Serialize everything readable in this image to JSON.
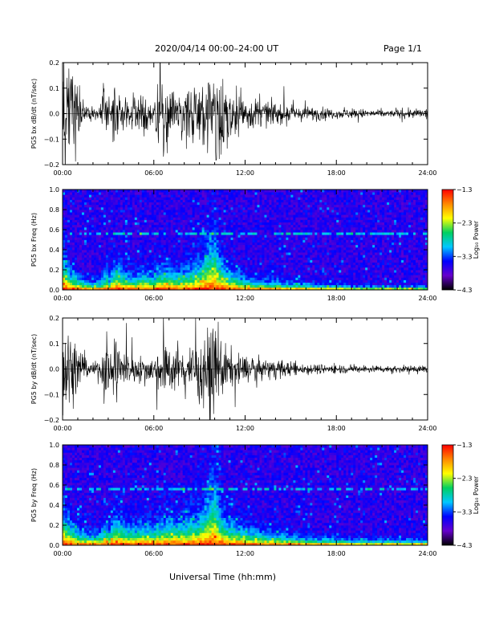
{
  "header": {
    "title": "2020/04/14   00:00–24:00 UT",
    "page": "Page 1/1"
  },
  "footer": {
    "xlabel": "Universal Time (hh:mm)"
  },
  "colors": {
    "trace": "#000000",
    "spec_background": "#1a0033",
    "colorbar": [
      "#000000",
      "#6600cc",
      "#0000ff",
      "#00c8ff",
      "#00d060",
      "#ffff00",
      "#ff8800",
      "#ff0000"
    ]
  },
  "chart_data": [
    {
      "type": "line",
      "name": "timeseries_bx",
      "ylabel": "PG5 bx dB/dt (nT/sec)",
      "xlabel": "",
      "xlim": [
        0,
        24
      ],
      "ylim": [
        -0.2,
        0.2
      ],
      "xticks": [
        "00:00",
        "06:00",
        "12:00",
        "18:00",
        "24:00"
      ],
      "yticks": [
        "0.2",
        "0.1",
        "0.0",
        "−0.1",
        "−0.2"
      ],
      "ytick_values": [
        0.2,
        0.1,
        0.0,
        -0.1,
        -0.2
      ],
      "x": [
        0,
        0.3,
        0.6,
        0.9,
        1.2,
        1.5,
        2.0,
        2.5,
        2.9,
        3.1,
        3.4,
        3.8,
        4.3,
        4.8,
        5.2,
        5.6,
        6.0,
        6.3,
        6.8,
        7.3,
        7.8,
        8.3,
        8.8,
        9.3,
        9.7,
        10.0,
        10.3,
        10.8,
        11.3,
        11.8,
        12.3,
        12.8,
        13.3,
        13.8,
        14.5,
        15.2,
        16.0,
        16.8,
        17.5,
        18.2,
        19.0,
        19.8,
        20.5,
        21.2,
        22.0,
        22.8,
        23.5,
        24.0
      ],
      "y": [
        0.2,
        0.2,
        0.2,
        0.15,
        0.08,
        0.04,
        0.03,
        0.04,
        0.2,
        0.06,
        0.2,
        0.08,
        0.07,
        0.06,
        0.08,
        0.06,
        0.05,
        0.15,
        0.13,
        0.1,
        0.1,
        0.13,
        0.16,
        0.14,
        0.18,
        0.2,
        0.18,
        0.12,
        0.09,
        0.08,
        0.07,
        0.06,
        0.05,
        0.05,
        0.04,
        0.03,
        0.03,
        0.03,
        0.02,
        0.02,
        0.02,
        0.02,
        0.015,
        0.015,
        0.015,
        0.02,
        0.02,
        0.025
      ]
    },
    {
      "type": "heatmap",
      "name": "spectrogram_bx",
      "ylabel": "PG5 bx Freq (Hz)",
      "xlabel": "",
      "xlim": [
        0,
        24
      ],
      "ylim": [
        0.0,
        1.0
      ],
      "xticks": [
        "00:00",
        "06:00",
        "12:00",
        "18:00",
        "24:00"
      ],
      "yticks": [
        "1.0",
        "0.8",
        "0.6",
        "0.4",
        "0.2",
        "0.0"
      ],
      "ytick_values": [
        1.0,
        0.8,
        0.6,
        0.4,
        0.2,
        0.0
      ],
      "colorbar_label": "Log₁₀ Power",
      "colorbar_ticks": [
        "−1.3",
        "−2.3",
        "−3.3",
        "−4.3"
      ],
      "colorbar_values": [
        -1.3,
        -2.3,
        -3.3,
        -4.3
      ],
      "clim": [
        -4.3,
        -1.3
      ],
      "band_center_hz": 0.56,
      "x": [
        0,
        0.3,
        0.6,
        0.9,
        1.2,
        1.5,
        2.0,
        2.5,
        2.9,
        3.1,
        3.4,
        3.8,
        4.3,
        4.8,
        5.2,
        5.6,
        6.0,
        6.3,
        6.8,
        7.3,
        7.8,
        8.3,
        8.8,
        9.3,
        9.7,
        10.0,
        10.3,
        10.8,
        11.3,
        11.8,
        12.3,
        12.8,
        13.3,
        13.8,
        14.5,
        15.2,
        16.0,
        16.8,
        17.5,
        18.2,
        19.0,
        19.8,
        20.5,
        21.2,
        22.0,
        22.8,
        23.5,
        24.0
      ],
      "low_freq_extent_hz": [
        0.18,
        0.14,
        0.1,
        0.08,
        0.06,
        0.05,
        0.04,
        0.05,
        0.1,
        0.06,
        0.14,
        0.12,
        0.08,
        0.08,
        0.1,
        0.09,
        0.08,
        0.12,
        0.12,
        0.1,
        0.1,
        0.12,
        0.14,
        0.18,
        0.26,
        0.3,
        0.18,
        0.12,
        0.09,
        0.07,
        0.06,
        0.05,
        0.05,
        0.05,
        0.04,
        0.04,
        0.03,
        0.03,
        0.03,
        0.03,
        0.02,
        0.02,
        0.02,
        0.02,
        0.02,
        0.02,
        0.02,
        0.02
      ]
    },
    {
      "type": "line",
      "name": "timeseries_by",
      "ylabel": "PG5 by dB/dt (nT/sec)",
      "xlabel": "",
      "xlim": [
        0,
        24
      ],
      "ylim": [
        -0.2,
        0.2
      ],
      "xticks": [
        "00:00",
        "06:00",
        "12:00",
        "18:00",
        "24:00"
      ],
      "yticks": [
        "0.2",
        "0.1",
        "0.0",
        "−0.1",
        "−0.2"
      ],
      "ytick_values": [
        0.2,
        0.1,
        0.0,
        -0.1,
        -0.2
      ],
      "x": [
        0,
        0.3,
        0.6,
        0.9,
        1.2,
        1.5,
        2.0,
        2.5,
        2.9,
        3.1,
        3.4,
        3.8,
        4.3,
        4.8,
        5.2,
        5.6,
        6.0,
        6.3,
        6.8,
        7.3,
        7.8,
        8.3,
        8.8,
        9.3,
        9.7,
        10.0,
        10.3,
        10.8,
        11.3,
        11.8,
        12.3,
        12.8,
        13.3,
        13.8,
        14.5,
        15.2,
        16.0,
        16.8,
        17.5,
        18.2,
        19.0,
        19.8,
        20.5,
        21.2,
        22.0,
        22.8,
        23.5,
        24.0
      ],
      "y": [
        0.2,
        0.2,
        0.15,
        0.12,
        0.07,
        0.04,
        0.03,
        0.04,
        0.2,
        0.06,
        0.2,
        0.08,
        0.07,
        0.05,
        0.06,
        0.05,
        0.05,
        0.1,
        0.11,
        0.08,
        0.08,
        0.1,
        0.12,
        0.14,
        0.16,
        0.17,
        0.15,
        0.09,
        0.07,
        0.06,
        0.05,
        0.045,
        0.04,
        0.04,
        0.035,
        0.03,
        0.025,
        0.02,
        0.02,
        0.02,
        0.015,
        0.015,
        0.015,
        0.015,
        0.015,
        0.015,
        0.015,
        0.02
      ]
    },
    {
      "type": "heatmap",
      "name": "spectrogram_by",
      "ylabel": "PG5 by Freq (Hz)",
      "xlabel": "",
      "xlim": [
        0,
        24
      ],
      "ylim": [
        0.0,
        1.0
      ],
      "xticks": [
        "00:00",
        "06:00",
        "12:00",
        "18:00",
        "24:00"
      ],
      "yticks": [
        "1.0",
        "0.8",
        "0.6",
        "0.4",
        "0.2",
        "0.0"
      ],
      "ytick_values": [
        1.0,
        0.8,
        0.6,
        0.4,
        0.2,
        0.0
      ],
      "colorbar_label": "Log₁₀ Power",
      "colorbar_ticks": [
        "−1.3",
        "−2.3",
        "−3.3",
        "−4.3"
      ],
      "colorbar_values": [
        -1.3,
        -2.3,
        -3.3,
        -4.3
      ],
      "clim": [
        -4.3,
        -1.3
      ],
      "band_center_hz": 0.56,
      "x": [
        0,
        0.3,
        0.6,
        0.9,
        1.2,
        1.5,
        2.0,
        2.5,
        2.9,
        3.1,
        3.4,
        3.8,
        4.3,
        4.8,
        5.2,
        5.6,
        6.0,
        6.3,
        6.8,
        7.3,
        7.8,
        8.3,
        8.8,
        9.3,
        9.7,
        10.0,
        10.3,
        10.8,
        11.3,
        11.8,
        12.3,
        12.8,
        13.3,
        13.8,
        14.5,
        15.2,
        16.0,
        16.8,
        17.5,
        18.2,
        19.0,
        19.8,
        20.5,
        21.2,
        22.0,
        22.8,
        23.5,
        24.0
      ],
      "low_freq_extent_hz": [
        0.2,
        0.16,
        0.12,
        0.1,
        0.08,
        0.07,
        0.06,
        0.07,
        0.12,
        0.08,
        0.16,
        0.14,
        0.1,
        0.1,
        0.12,
        0.11,
        0.1,
        0.13,
        0.14,
        0.13,
        0.14,
        0.15,
        0.16,
        0.2,
        0.3,
        0.34,
        0.2,
        0.14,
        0.12,
        0.1,
        0.09,
        0.08,
        0.07,
        0.07,
        0.06,
        0.05,
        0.04,
        0.04,
        0.04,
        0.04,
        0.03,
        0.03,
        0.03,
        0.03,
        0.03,
        0.03,
        0.03,
        0.03
      ]
    }
  ]
}
